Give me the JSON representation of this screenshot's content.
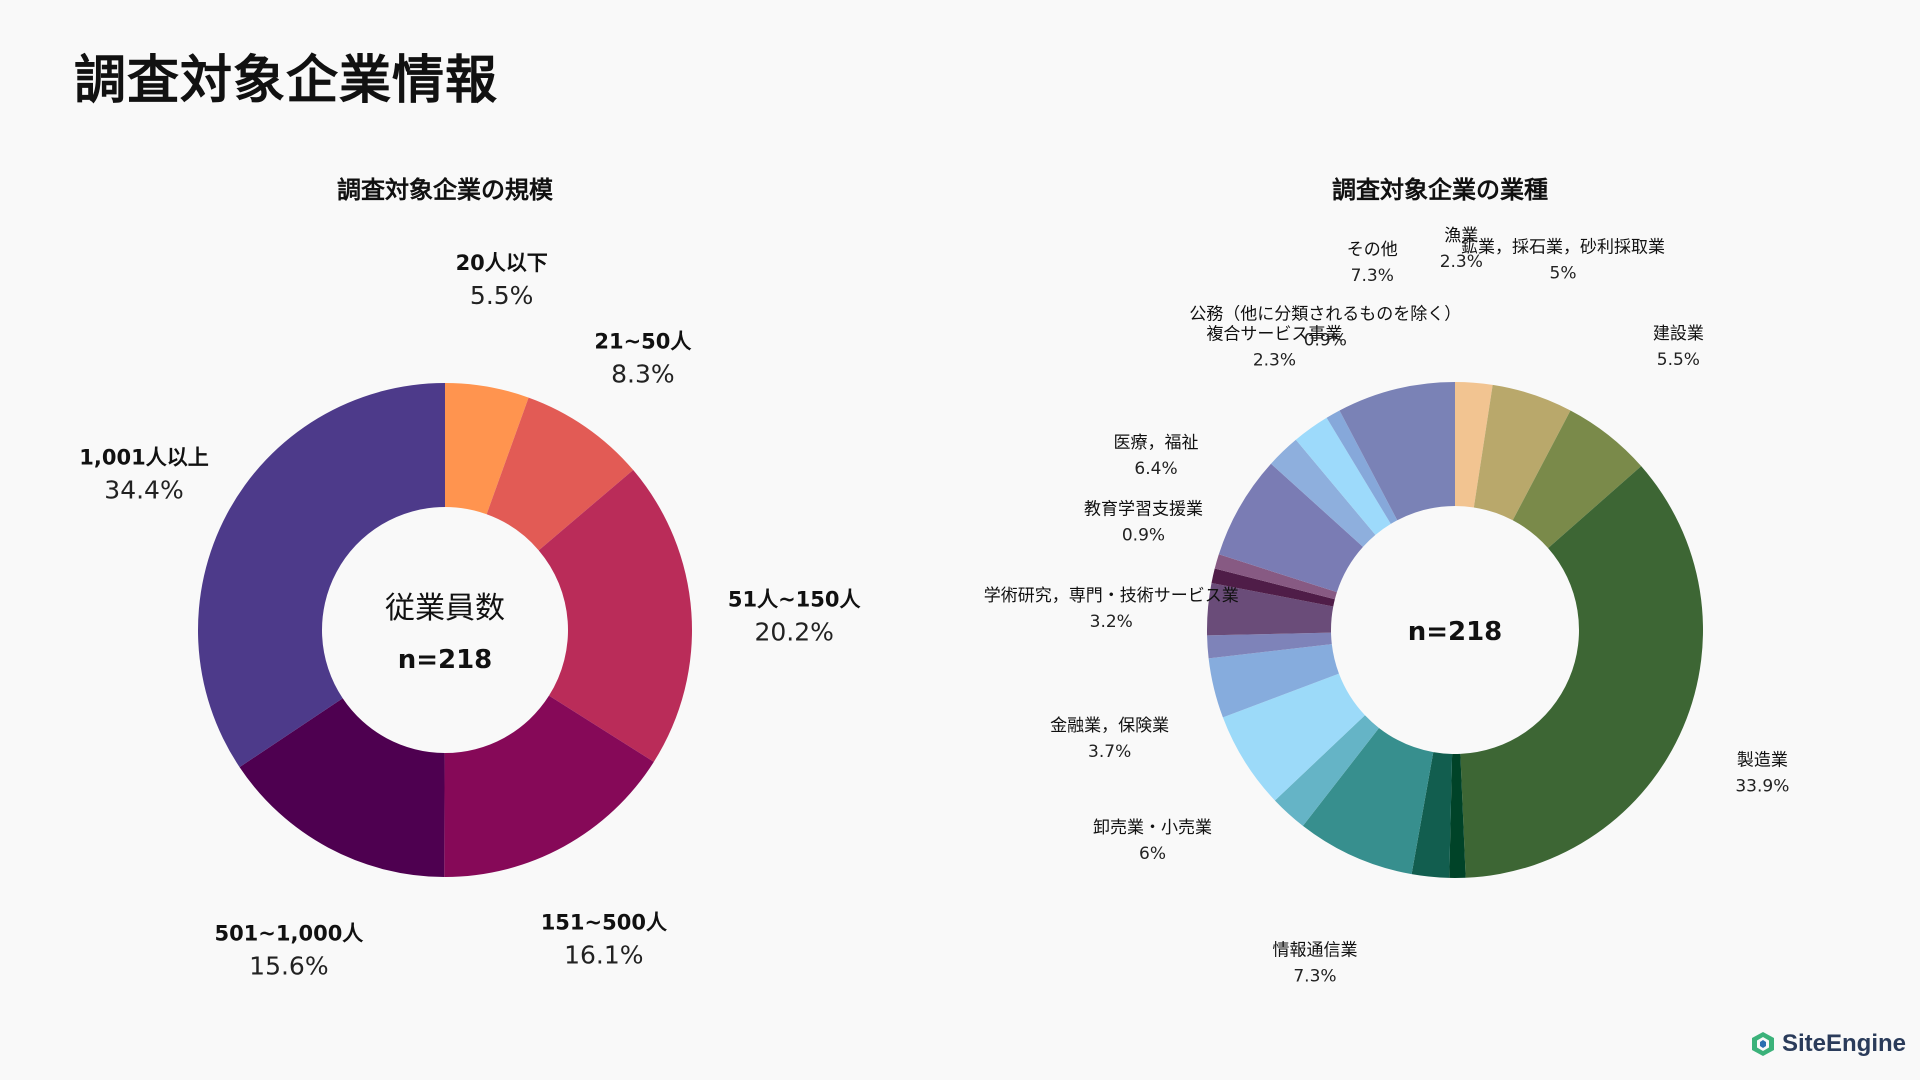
{
  "page_title": "調査対象企業情報",
  "logo_text": "SiteEngine",
  "chart_data": [
    {
      "type": "pie",
      "title": "調査対象企業の規模",
      "center_label": "従業員数",
      "center_sub": "n=218",
      "unit": "%",
      "slices": [
        {
          "label": "20人以下",
          "value": 5.5,
          "value_text": "5.5%",
          "color": "#FF944F"
        },
        {
          "label": "21~50人",
          "value": 8.3,
          "value_text": "8.3%",
          "color": "#E25B55"
        },
        {
          "label": "51人~150人",
          "value": 20.2,
          "value_text": "20.2%",
          "color": "#BA2C59"
        },
        {
          "label": "151~500人",
          "value": 16.1,
          "value_text": "16.1%",
          "color": "#860958"
        },
        {
          "label": "501~1,000人",
          "value": 15.6,
          "value_text": "15.6%",
          "color": "#4E0050"
        },
        {
          "label": "1,001人以上",
          "value": 34.4,
          "value_text": "34.4%",
          "color": "#4D3A8A"
        }
      ]
    },
    {
      "type": "pie",
      "title": "調査対象企業の業種",
      "center_label": "",
      "center_sub": "n=218",
      "unit": "%",
      "slices": [
        {
          "label": "漁業",
          "value": 2.3,
          "value_text": "2.3%",
          "color": "#F2C491"
        },
        {
          "label": "鉱業，採石業，砂利採取業",
          "value": 5,
          "value_text": "5%",
          "color": "#B9A86B"
        },
        {
          "label": "建設業",
          "value": 5.5,
          "value_text": "5.5%",
          "color": "#7A8A4A"
        },
        {
          "label": "製造業",
          "value": 33.9,
          "value_text": "33.9%",
          "color": "#3D6634"
        },
        {
          "label": "",
          "value": 1.0,
          "value_text": "",
          "color": "#004328"
        },
        {
          "label": "",
          "value": 2.3,
          "value_text": "",
          "color": "#125E4F"
        },
        {
          "label": "情報通信業",
          "value": 7.3,
          "value_text": "7.3%",
          "color": "#378F8E"
        },
        {
          "label": "",
          "value": 2.3,
          "value_text": "",
          "color": "#65B4C6"
        },
        {
          "label": "卸売業・小売業",
          "value": 6,
          "value_text": "6%",
          "color": "#9CDAF9"
        },
        {
          "label": "金融業，保険業",
          "value": 3.7,
          "value_text": "3.7%",
          "color": "#86ACDD"
        },
        {
          "label": "",
          "value": 1.4,
          "value_text": "",
          "color": "#7E83B9"
        },
        {
          "label": "学術研究，専門・技術サービス業",
          "value": 3.2,
          "value_text": "3.2%",
          "color": "#6A4C79"
        },
        {
          "label": "",
          "value": 0.9,
          "value_text": "",
          "color": "#4F1D48"
        },
        {
          "label": "教育学習支援業",
          "value": 0.9,
          "value_text": "0.9%",
          "color": "#875A83"
        },
        {
          "label": "医療，福祉",
          "value": 6.4,
          "value_text": "6.4%",
          "color": "#7A7CB4"
        },
        {
          "label": "",
          "value": 2.1,
          "value_text": "",
          "color": "#8EAFDD"
        },
        {
          "label": "複合サービス事業",
          "value": 2.3,
          "value_text": "2.3%",
          "color": "#9DDAFB"
        },
        {
          "label": "公務（他に分類されるものを除く）",
          "value": 0.9,
          "value_text": "0.9%",
          "color": "#86A8DA"
        },
        {
          "label": "その他",
          "value": 7.3,
          "value_text": "7.3%",
          "color": "#7A82B6"
        }
      ]
    }
  ]
}
